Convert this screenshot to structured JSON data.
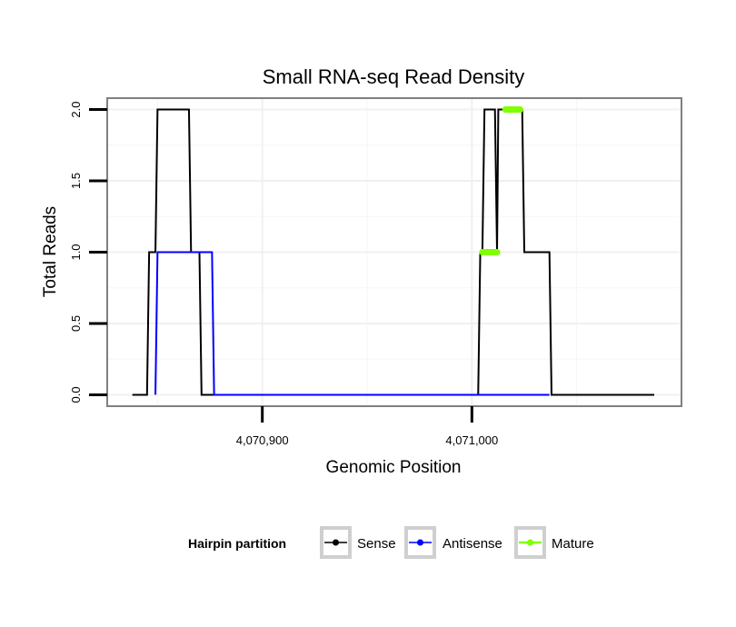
{
  "chart_data": {
    "type": "line",
    "title": "Small RNA-seq Read Density",
    "xlabel": "Genomic Position",
    "ylabel": "Total Reads",
    "xlim": [
      4070826,
      4071100
    ],
    "ylim": [
      -0.08,
      2.08
    ],
    "x_ticks": [
      {
        "value": 4070900,
        "label": "4,070,900"
      },
      {
        "value": 4071000,
        "label": "4,071,000"
      }
    ],
    "y_ticks": [
      {
        "value": 0.0,
        "label": "0.0"
      },
      {
        "value": 0.5,
        "label": "0.5"
      },
      {
        "value": 1.0,
        "label": "1.0"
      },
      {
        "value": 1.5,
        "label": "1.5"
      },
      {
        "value": 2.0,
        "label": "2.0"
      }
    ],
    "grid": true,
    "legend": {
      "title": "Hairpin partition",
      "position": "bottom",
      "entries": [
        {
          "label": "Sense",
          "color": "#000000"
        },
        {
          "label": "Antisense",
          "color": "#0000ff"
        },
        {
          "label": "Mature",
          "color": "#7fff00"
        }
      ]
    },
    "series": [
      {
        "name": "Sense",
        "color": "#000000",
        "x": [
          4070838,
          4070845,
          4070846,
          4070849,
          4070850,
          4070865,
          4070866,
          4070870,
          4070871,
          4071003,
          4071004,
          4071005,
          4071006,
          4071011,
          4071012,
          4071012.6,
          4071013,
          4071024,
          4071025,
          4071037,
          4071038,
          4071087
        ],
        "y": [
          0,
          0,
          1,
          1,
          2,
          2,
          1,
          1,
          0,
          0,
          1,
          1,
          2,
          2,
          1,
          2,
          2,
          2,
          1,
          1,
          0,
          0
        ]
      },
      {
        "name": "Antisense",
        "color": "#0000ff",
        "x": [
          4070849,
          4070850,
          4070876,
          4070877,
          4071037
        ],
        "y": [
          0,
          1,
          1,
          0,
          0
        ]
      },
      {
        "name": "Mature",
        "color": "#7fff00",
        "segments": [
          {
            "x": [
              4071005,
              4071012
            ],
            "y": [
              1,
              1
            ]
          },
          {
            "x": [
              4071016,
              4071023
            ],
            "y": [
              2,
              2
            ]
          }
        ]
      }
    ]
  }
}
